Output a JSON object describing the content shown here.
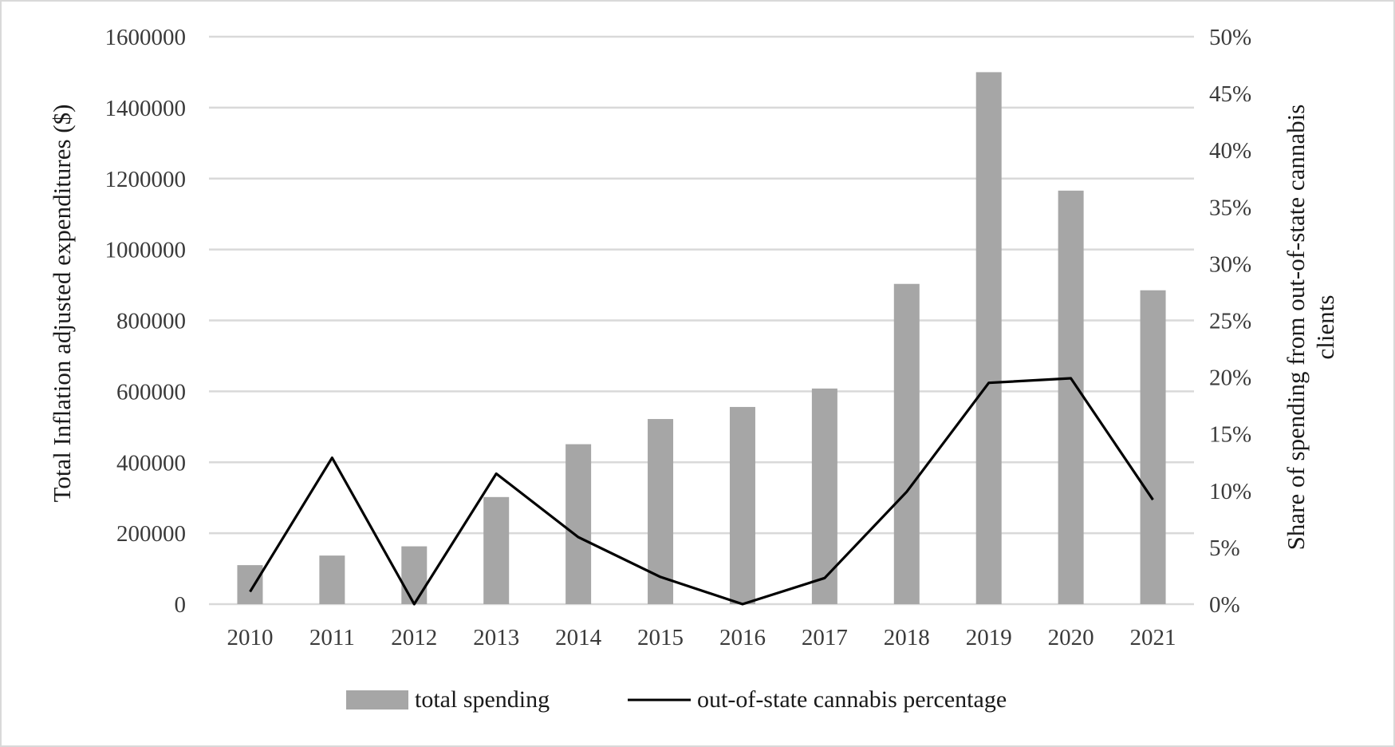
{
  "chart_data": {
    "type": "bar+line",
    "categories": [
      "2010",
      "2011",
      "2012",
      "2013",
      "2014",
      "2015",
      "2016",
      "2017",
      "2018",
      "2019",
      "2020",
      "2021"
    ],
    "series": [
      {
        "name": "total spending",
        "type": "bar",
        "axis": "left",
        "color": "#a6a6a6",
        "values": [
          110000,
          137000,
          163000,
          302000,
          451000,
          522000,
          556000,
          608000,
          903000,
          1500000,
          1166000,
          885000
        ]
      },
      {
        "name": "out-of-state cannabis percentage",
        "type": "line",
        "axis": "right",
        "color": "#000000",
        "values": [
          1.1,
          12.9,
          0,
          11.5,
          5.9,
          2.4,
          0,
          2.3,
          9.9,
          19.5,
          19.9,
          9.2
        ]
      }
    ],
    "left_axis": {
      "title": "Total Inflation adjusted expenditures ($)",
      "ylim": [
        0,
        1600000
      ],
      "ticks": [
        "0",
        "200000",
        "400000",
        "600000",
        "800000",
        "1000000",
        "1200000",
        "1400000",
        "1600000"
      ]
    },
    "right_axis": {
      "title_lines": [
        "Share of spending from out-of-state cannabis",
        "clients"
      ],
      "ylim": [
        0,
        50
      ],
      "ticks": [
        "0%",
        "5%",
        "10%",
        "15%",
        "20%",
        "25%",
        "30%",
        "35%",
        "40%",
        "45%",
        "50%"
      ]
    },
    "grid": true,
    "legend_position": "bottom-center"
  }
}
